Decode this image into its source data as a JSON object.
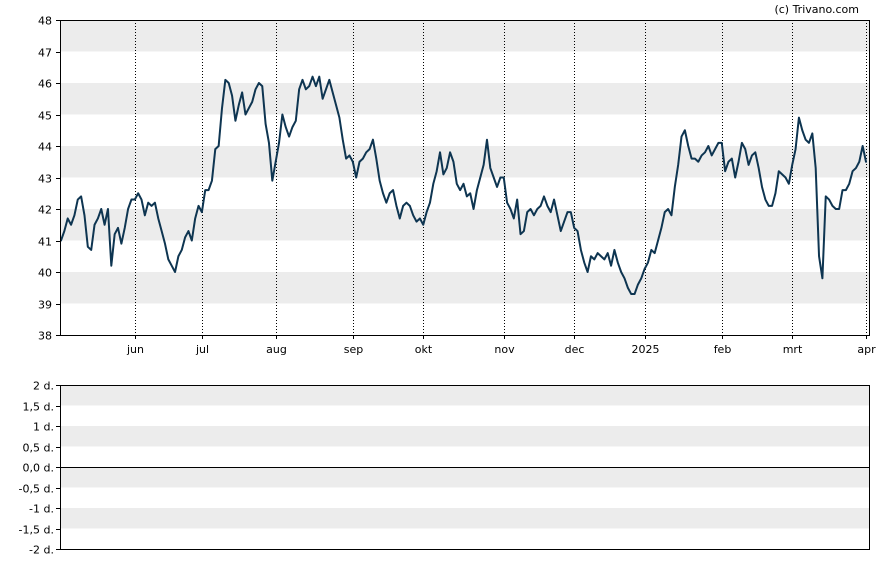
{
  "copyright": "(c) Trivano.com",
  "colors": {
    "line": "#0e3551",
    "band": "#ececec",
    "grid": "#000000",
    "frame": "#000000"
  },
  "chart_data": [
    {
      "type": "line",
      "ylim": [
        38,
        48
      ],
      "y_ticks": [
        "38",
        "39",
        "40",
        "41",
        "42",
        "43",
        "44",
        "45",
        "46",
        "47",
        "48"
      ],
      "x_tick_labels": [
        "jun",
        "jul",
        "aug",
        "sep",
        "okt",
        "nov",
        "dec",
        "2025",
        "feb",
        "mrt",
        "apr"
      ],
      "x_tick_index": [
        22,
        42,
        64,
        87,
        108,
        132,
        153,
        174,
        197,
        218,
        240
      ],
      "grid": "vertical dotted at month starts, alternating horizontal bands",
      "series": [
        {
          "values": [
            41.0,
            41.3,
            41.7,
            41.5,
            41.8,
            42.3,
            42.4,
            41.8,
            40.8,
            40.7,
            41.5,
            41.7,
            42.0,
            41.5,
            42.0,
            40.2,
            41.2,
            41.4,
            40.9,
            41.4,
            42.0,
            42.3,
            42.3,
            42.5,
            42.3,
            41.8,
            42.2,
            42.1,
            42.2,
            41.7,
            41.3,
            40.9,
            40.4,
            40.2,
            40.0,
            40.5,
            40.7,
            41.1,
            41.3,
            41.0,
            41.7,
            42.1,
            41.9,
            42.6,
            42.6,
            42.9,
            43.9,
            44.0,
            45.2,
            46.1,
            46.0,
            45.6,
            44.8,
            45.3,
            45.7,
            45.0,
            45.2,
            45.4,
            45.8,
            46.0,
            45.9,
            44.7,
            44.1,
            42.9,
            43.5,
            44.1,
            45.0,
            44.6,
            44.3,
            44.6,
            44.8,
            45.8,
            46.1,
            45.8,
            45.9,
            46.2,
            45.9,
            46.2,
            45.5,
            45.8,
            46.1,
            45.7,
            45.3,
            44.9,
            44.2,
            43.6,
            43.7,
            43.5,
            43.0,
            43.5,
            43.6,
            43.8,
            43.9,
            44.2,
            43.6,
            42.9,
            42.5,
            42.2,
            42.5,
            42.6,
            42.1,
            41.7,
            42.1,
            42.2,
            42.1,
            41.8,
            41.6,
            41.7,
            41.5,
            41.9,
            42.2,
            42.8,
            43.2,
            43.8,
            43.1,
            43.3,
            43.8,
            43.5,
            42.8,
            42.6,
            42.8,
            42.4,
            42.5,
            42.0,
            42.6,
            43.0,
            43.4,
            44.2,
            43.3,
            43.0,
            42.7,
            43.0,
            43.0,
            42.2,
            42.0,
            41.7,
            42.3,
            41.2,
            41.3,
            41.9,
            42.0,
            41.8,
            42.0,
            42.1,
            42.4,
            42.1,
            41.9,
            42.3,
            41.8,
            41.3,
            41.6,
            41.9,
            41.9,
            41.4,
            41.3,
            40.7,
            40.3,
            40.0,
            40.5,
            40.4,
            40.6,
            40.5,
            40.4,
            40.6,
            40.2,
            40.7,
            40.3,
            40.0,
            39.8,
            39.5,
            39.3,
            39.3,
            39.6,
            39.8,
            40.1,
            40.3,
            40.7,
            40.6,
            41.0,
            41.4,
            41.9,
            42.0,
            41.8,
            42.7,
            43.4,
            44.3,
            44.5,
            44.0,
            43.6,
            43.6,
            43.5,
            43.7,
            43.8,
            44.0,
            43.7,
            43.9,
            44.1,
            44.1,
            43.2,
            43.5,
            43.6,
            43.0,
            43.5,
            44.1,
            43.9,
            43.4,
            43.7,
            43.8,
            43.3,
            42.7,
            42.3,
            42.1,
            42.1,
            42.5,
            43.2,
            43.1,
            43.0,
            42.8,
            43.4,
            43.9,
            44.9,
            44.5,
            44.2,
            44.1,
            44.4,
            43.3,
            40.5,
            39.8,
            42.4,
            42.3,
            42.1,
            42.0,
            42.0,
            42.6,
            42.6,
            42.8,
            43.2,
            43.3,
            43.5,
            44.0,
            43.5
          ]
        }
      ]
    },
    {
      "type": "line",
      "ylim": [
        -2,
        2
      ],
      "y_ticks": [
        "-2 d.",
        "-1,5 d.",
        "-1 d.",
        "-0,5 d.",
        "0,0 d.",
        "0,5 d.",
        "1 d.",
        "1,5 d.",
        "2 d."
      ],
      "zero_line": 0,
      "series": []
    }
  ]
}
